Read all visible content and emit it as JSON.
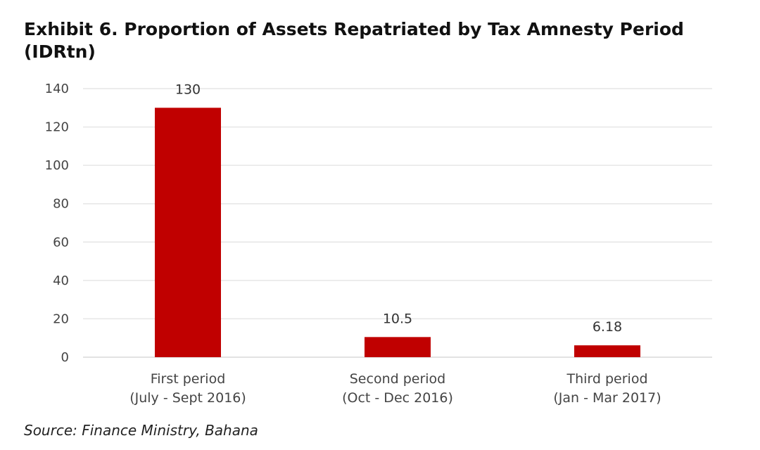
{
  "chart_data": {
    "type": "bar",
    "title": "Exhibit 6. Proportion of Assets Repatriated by Tax Amnesty Period (IDRtn)",
    "categories": [
      [
        "First period",
        "(July - Sept 2016)"
      ],
      [
        "Second period",
        "(Oct - Dec 2016)"
      ],
      [
        "Third period",
        "(Jan - Mar 2017)"
      ]
    ],
    "values": [
      130,
      10.5,
      6.18
    ],
    "value_labels": [
      "130",
      "10.5",
      "6.18"
    ],
    "ylim": [
      0,
      140
    ],
    "yticks": [
      0,
      20,
      40,
      60,
      80,
      100,
      120,
      140
    ],
    "xlabel": "",
    "ylabel": "",
    "grid": true,
    "legend": "none",
    "bar_color": "#C00000",
    "gridline_color": "#E6E6E6"
  },
  "source": "Source: Finance Ministry, Bahana"
}
